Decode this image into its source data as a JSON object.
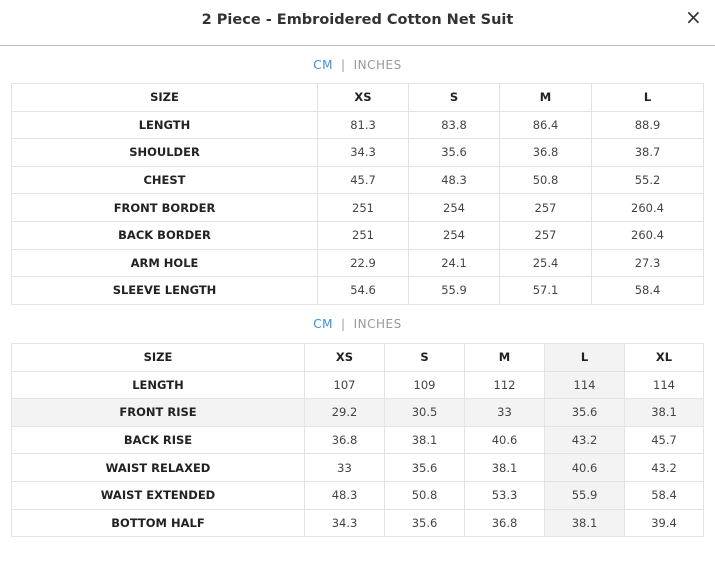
{
  "header": {
    "title": "2 Piece - Embroidered Cotton Net Suit",
    "close": "×"
  },
  "tables": [
    {
      "units": [
        "CM",
        "INCHES"
      ],
      "separator": "|",
      "header": [
        "SIZE",
        "XS",
        "S",
        "M",
        "L"
      ],
      "rows": [
        [
          "LENGTH",
          "81.3",
          "83.8",
          "86.4",
          "88.9"
        ],
        [
          "SHOULDER",
          "34.3",
          "35.6",
          "36.8",
          "38.7"
        ],
        [
          "CHEST",
          "45.7",
          "48.3",
          "50.8",
          "55.2"
        ],
        [
          "FRONT BORDER",
          "251",
          "254",
          "257",
          "260.4"
        ],
        [
          "BACK BORDER",
          "251",
          "254",
          "257",
          "260.4"
        ],
        [
          "ARM HOLE",
          "22.9",
          "24.1",
          "25.4",
          "27.3"
        ],
        [
          "SLEEVE LENGTH",
          "54.6",
          "55.9",
          "57.1",
          "58.4"
        ]
      ]
    },
    {
      "units": [
        "CM",
        "INCHES"
      ],
      "separator": "|",
      "header": [
        "SIZE",
        "XS",
        "S",
        "M",
        "L",
        "XL"
      ],
      "rows": [
        [
          "LENGTH",
          "107",
          "109",
          "112",
          "114",
          "114"
        ],
        [
          "FRONT RISE",
          "29.2",
          "30.5",
          "33",
          "35.6",
          "38.1"
        ],
        [
          "BACK RISE",
          "36.8",
          "38.1",
          "40.6",
          "43.2",
          "45.7"
        ],
        [
          "WAIST RELAXED",
          "33",
          "35.6",
          "38.1",
          "40.6",
          "43.2"
        ],
        [
          "WAIST EXTENDED",
          "48.3",
          "50.8",
          "53.3",
          "55.9",
          "58.4"
        ],
        [
          "BOTTOM HALF",
          "34.3",
          "35.6",
          "36.8",
          "38.1",
          "39.4"
        ]
      ]
    }
  ]
}
